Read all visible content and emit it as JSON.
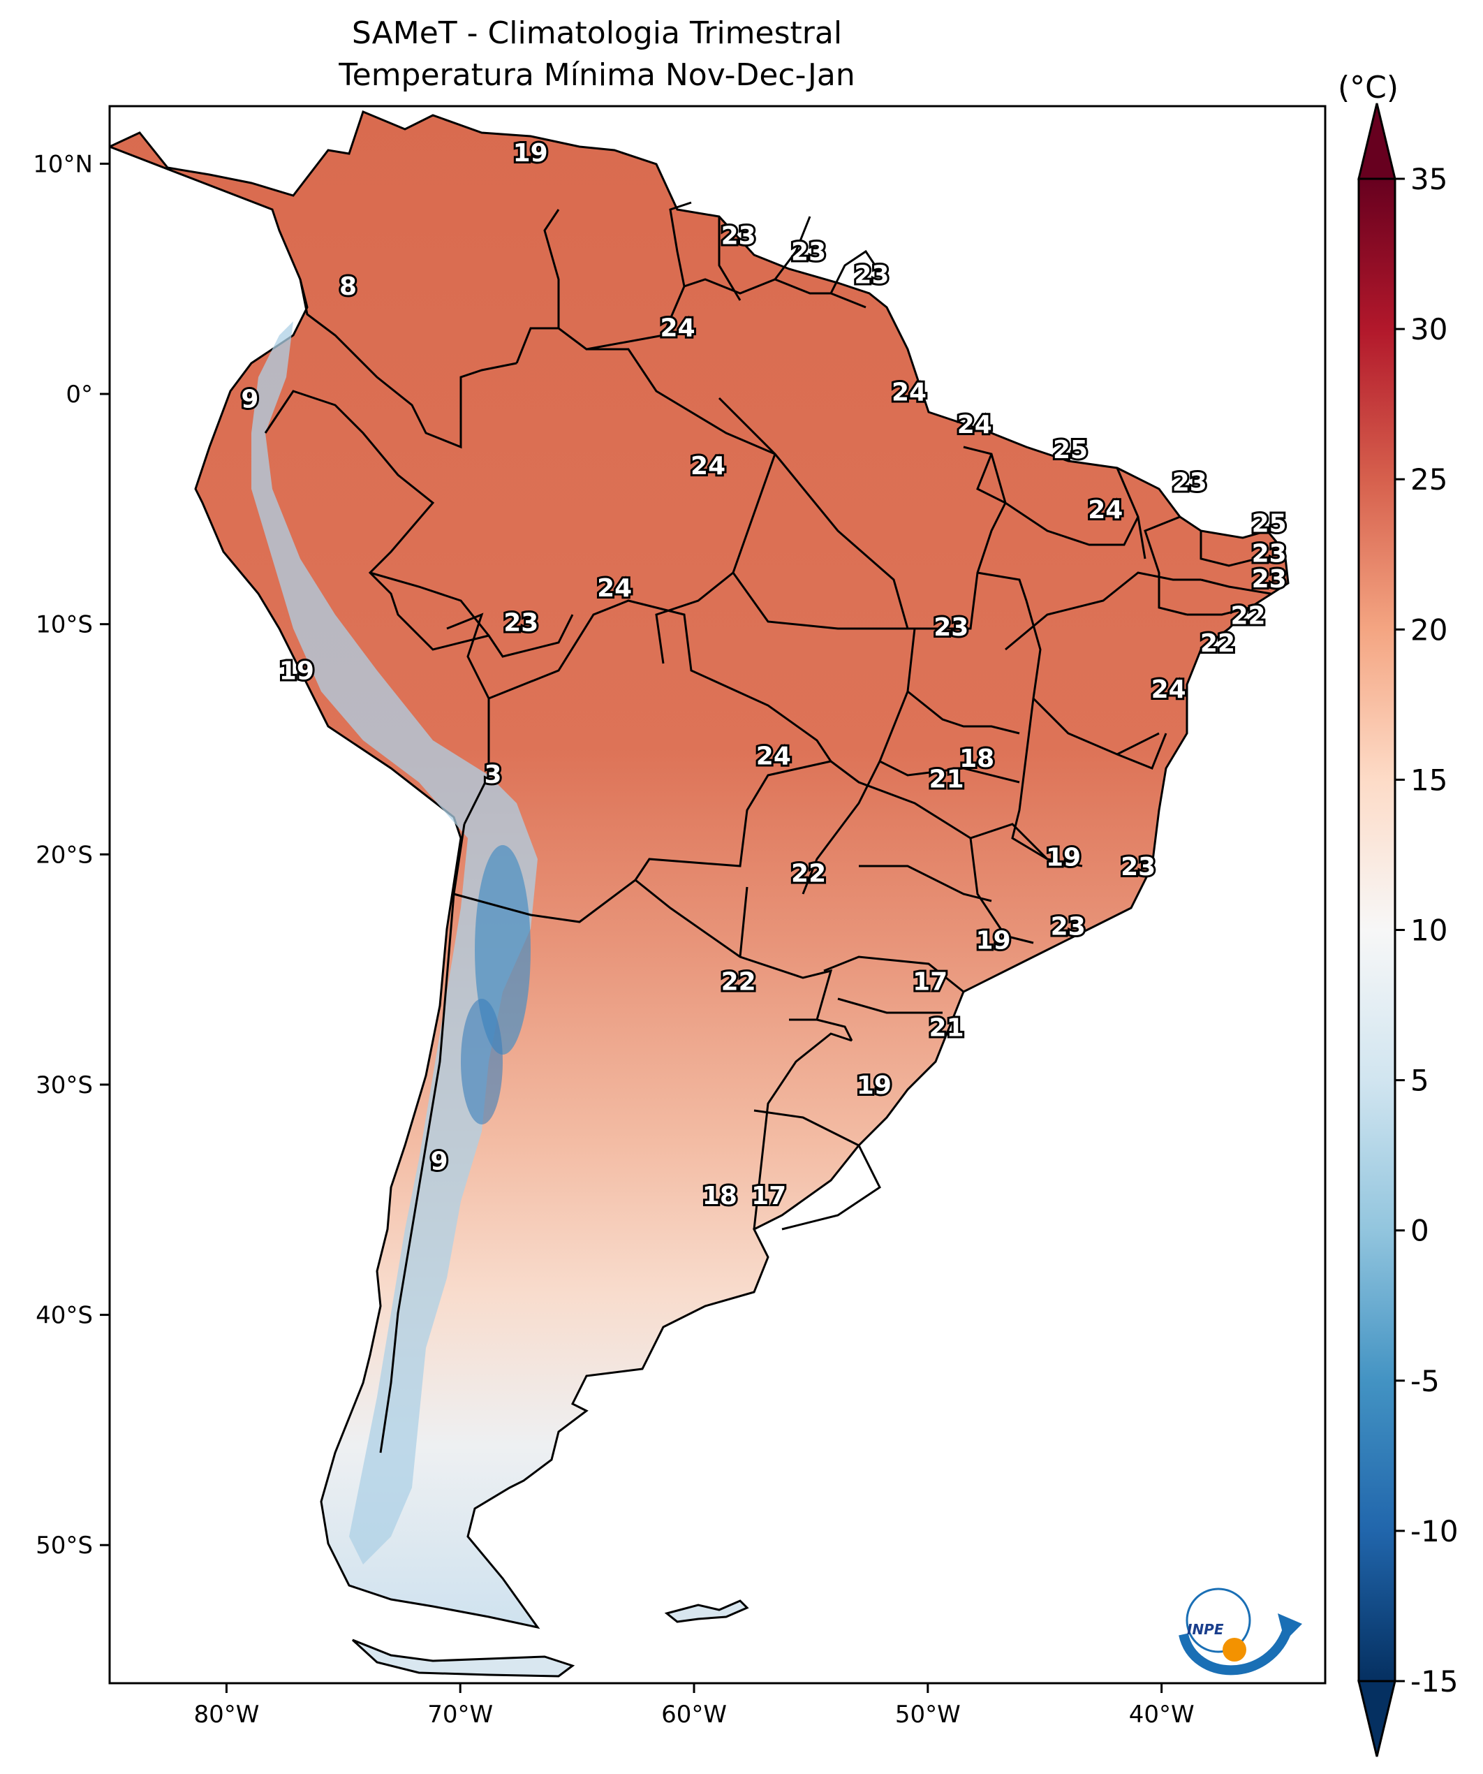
{
  "title": {
    "line1": "SAMeT - Climatologia Trimestral",
    "line2": "Temperatura Mínima   Nov-Dec-Jan"
  },
  "colorbar": {
    "unit": "(°C)",
    "range": [
      -15,
      35
    ],
    "ticks": [
      "35",
      "30",
      "25",
      "20",
      "15",
      "10",
      "5",
      "0",
      "-5",
      "-10",
      "-15"
    ],
    "tick_values": [
      35,
      30,
      25,
      20,
      15,
      10,
      5,
      0,
      -5,
      -10,
      -15
    ],
    "colors": [
      "#053061",
      "#2166ac",
      "#4393c3",
      "#92c5de",
      "#d1e5f0",
      "#f7f7f7",
      "#fddbc7",
      "#f4a582",
      "#d6604d",
      "#b2182b",
      "#67001f"
    ]
  },
  "map": {
    "lon_ticks": [
      "80°W",
      "70°W",
      "60°W",
      "50°W",
      "40°W"
    ],
    "lon_values": [
      -80,
      -70,
      -60,
      -50,
      -40
    ],
    "lat_ticks": [
      "10°N",
      "0°",
      "10°S",
      "20°S",
      "30°S",
      "40°S",
      "50°S"
    ],
    "lat_values": [
      10,
      0,
      -10,
      -20,
      -30,
      -40,
      -50
    ],
    "extent": {
      "lon": [
        -85,
        -33
      ],
      "lat": [
        -56,
        12.5
      ]
    },
    "value_labels": [
      {
        "text": "19",
        "lon": -67.0,
        "lat": 10.5
      },
      {
        "text": "23",
        "lon": -58.1,
        "lat": 6.9
      },
      {
        "text": "23",
        "lon": -55.1,
        "lat": 6.2
      },
      {
        "text": "23",
        "lon": -52.4,
        "lat": 5.2
      },
      {
        "text": "8",
        "lon": -74.8,
        "lat": 4.7
      },
      {
        "text": "24",
        "lon": -60.7,
        "lat": 2.9
      },
      {
        "text": "9",
        "lon": -79.0,
        "lat": -0.2
      },
      {
        "text": "24",
        "lon": -50.8,
        "lat": 0.1
      },
      {
        "text": "24",
        "lon": -48.0,
        "lat": -1.3
      },
      {
        "text": "25",
        "lon": -43.9,
        "lat": -2.4
      },
      {
        "text": "24",
        "lon": -59.4,
        "lat": -3.1
      },
      {
        "text": "23",
        "lon": -38.8,
        "lat": -3.8
      },
      {
        "text": "24",
        "lon": -42.4,
        "lat": -5.0
      },
      {
        "text": "25",
        "lon": -35.4,
        "lat": -5.6
      },
      {
        "text": "23",
        "lon": -35.4,
        "lat": -6.9
      },
      {
        "text": "23",
        "lon": -35.4,
        "lat": -8.0
      },
      {
        "text": "24",
        "lon": -63.4,
        "lat": -8.4
      },
      {
        "text": "22",
        "lon": -36.3,
        "lat": -9.6
      },
      {
        "text": "23",
        "lon": -67.4,
        "lat": -9.9
      },
      {
        "text": "23",
        "lon": -49.0,
        "lat": -10.1
      },
      {
        "text": "22",
        "lon": -37.6,
        "lat": -10.8
      },
      {
        "text": "19",
        "lon": -77.0,
        "lat": -12.0
      },
      {
        "text": "24",
        "lon": -39.7,
        "lat": -12.8
      },
      {
        "text": "24",
        "lon": -56.6,
        "lat": -15.7
      },
      {
        "text": "18",
        "lon": -47.9,
        "lat": -15.8
      },
      {
        "text": "3",
        "lon": -68.6,
        "lat": -16.5
      },
      {
        "text": "21",
        "lon": -49.2,
        "lat": -16.7
      },
      {
        "text": "19",
        "lon": -44.2,
        "lat": -20.1
      },
      {
        "text": "22",
        "lon": -55.1,
        "lat": -20.8
      },
      {
        "text": "23",
        "lon": -41.0,
        "lat": -20.5
      },
      {
        "text": "23",
        "lon": -44.0,
        "lat": -23.1
      },
      {
        "text": "19",
        "lon": -47.2,
        "lat": -23.7
      },
      {
        "text": "22",
        "lon": -58.1,
        "lat": -25.5
      },
      {
        "text": "17",
        "lon": -49.9,
        "lat": -25.5
      },
      {
        "text": "21",
        "lon": -49.2,
        "lat": -27.5
      },
      {
        "text": "19",
        "lon": -52.3,
        "lat": -30.0
      },
      {
        "text": "9",
        "lon": -70.9,
        "lat": -33.3
      },
      {
        "text": "18",
        "lon": -58.9,
        "lat": -34.8
      },
      {
        "text": "17",
        "lon": -56.8,
        "lat": -34.8
      }
    ]
  },
  "logo": {
    "text": "INPE"
  }
}
